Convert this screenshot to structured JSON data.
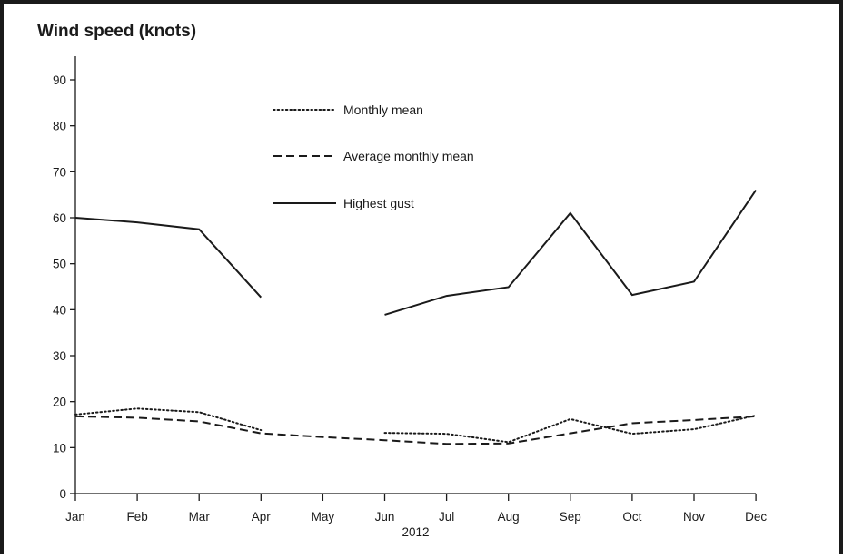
{
  "chart_data": {
    "type": "line",
    "title": "Wind speed (knots)",
    "xlabel": "2012",
    "ylabel": "",
    "categories": [
      "Jan",
      "Feb",
      "Mar",
      "Apr",
      "May",
      "Jun",
      "Jul",
      "Aug",
      "Sep",
      "Oct",
      "Nov",
      "Dec"
    ],
    "ylim": [
      0,
      90
    ],
    "yticks": [
      0,
      10,
      20,
      30,
      40,
      50,
      60,
      70,
      80,
      90
    ],
    "grid": false,
    "legend_position": "top-center",
    "series": [
      {
        "name": "Monthly mean",
        "style": "dotted",
        "color": "#1a1a1a",
        "values": [
          17.2,
          18.5,
          17.7,
          13.8,
          null,
          13.2,
          13.0,
          11.2,
          16.2,
          13.0,
          14.0,
          17.0
        ]
      },
      {
        "name": "Average monthly mean",
        "style": "dashed",
        "color": "#1a1a1a",
        "values": [
          16.8,
          16.5,
          15.7,
          13.1,
          12.3,
          11.6,
          10.8,
          10.9,
          13.1,
          15.3,
          16.0,
          16.8
        ]
      },
      {
        "name": "Highest gust",
        "style": "solid",
        "color": "#1a1a1a",
        "values": [
          60.0,
          59.0,
          57.5,
          42.7,
          null,
          38.9,
          43.0,
          44.9,
          61.0,
          43.2,
          46.1,
          66.0
        ]
      }
    ]
  }
}
